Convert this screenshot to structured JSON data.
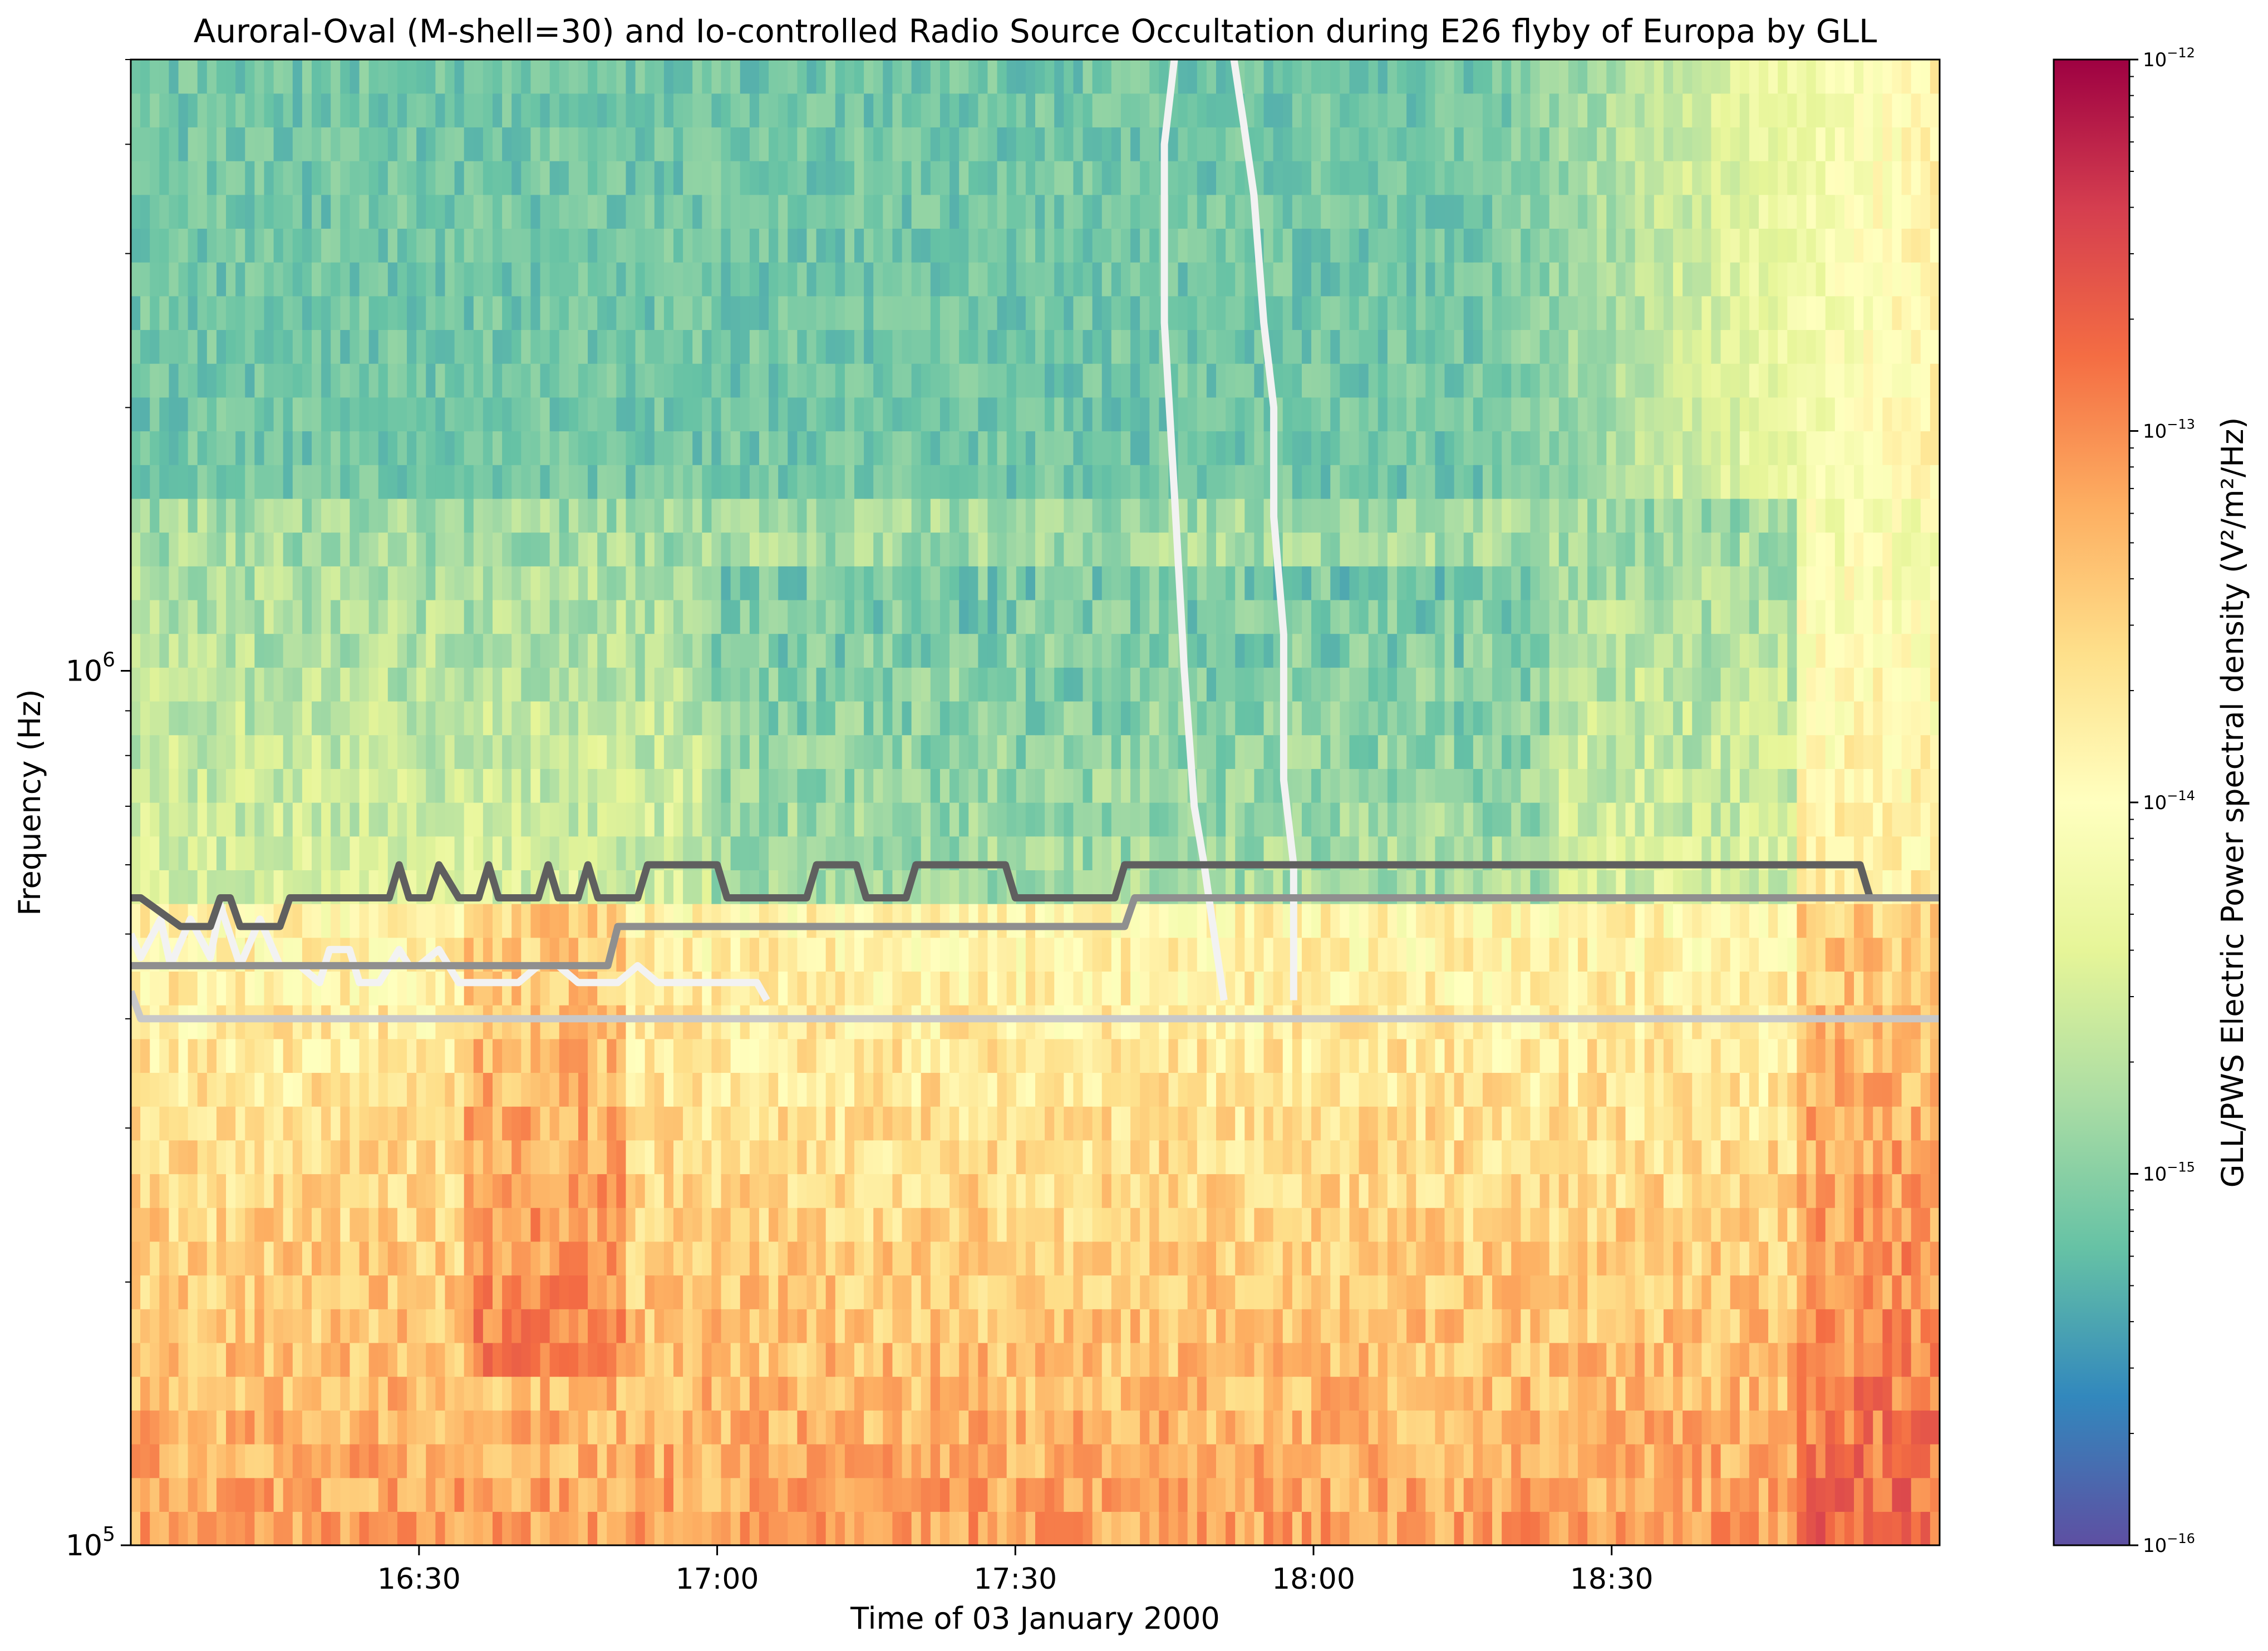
{
  "chart_data": {
    "type": "heatmap",
    "title": "Auroral-Oval (M-shell=30) and Io-controlled Radio Source Occultation during E26 flyby of Europa by GLL",
    "xlabel": "Time of 03 January 2000",
    "ylabel": "Frequency (Hz)",
    "colorbar_label": "GLL/PWS Electric Power spectral density (V²/m²/Hz)",
    "colormap": "Spectral_r",
    "colormap_stops": [
      "#5e4fa2",
      "#3288bd",
      "#66c2a5",
      "#abdda4",
      "#e6f598",
      "#ffffbf",
      "#fee08b",
      "#fdae61",
      "#f46d43",
      "#d53e4f",
      "#9e0142"
    ],
    "x_range": [
      "16:01",
      "19:03"
    ],
    "x_ticks": [
      "16:30",
      "17:00",
      "17:30",
      "18:00",
      "18:30"
    ],
    "y_scale": "log",
    "y_range": [
      100000,
      5000000
    ],
    "y_ticks": [
      {
        "value": 100000,
        "base": "10",
        "exp": "5"
      },
      {
        "value": 1000000,
        "base": "10",
        "exp": "6"
      }
    ],
    "color_scale": "log",
    "color_range": [
      1e-16,
      1e-12
    ],
    "color_ticks": [
      {
        "value": 1e-16,
        "base": "10",
        "exp": "−16"
      },
      {
        "value": 1e-15,
        "base": "10",
        "exp": "−15"
      },
      {
        "value": 1e-14,
        "base": "10",
        "exp": "−14"
      },
      {
        "value": 1e-13,
        "base": "10",
        "exp": "−13"
      },
      {
        "value": 1e-12,
        "base": "10",
        "exp": "−12"
      }
    ],
    "overlay_lines": [
      {
        "color": "#f2f2f2",
        "points": [
          [
            "17:46",
            5000000
          ],
          [
            "17:45",
            4000000
          ],
          [
            "17:45",
            2500000
          ],
          [
            "17:46",
            1600000
          ],
          [
            "17:47",
            1000000
          ],
          [
            "17:48",
            700000
          ],
          [
            "17:49",
            600000
          ],
          [
            "17:50",
            500000
          ],
          [
            "17:51",
            420000
          ]
        ]
      },
      {
        "color": "#f2f2f2",
        "points": [
          [
            "17:52",
            5000000
          ],
          [
            "17:53",
            4200000
          ],
          [
            "17:54",
            3500000
          ],
          [
            "17:55",
            2500000
          ],
          [
            "17:56",
            2000000
          ],
          [
            "17:56",
            1500000
          ],
          [
            "17:57",
            1100000
          ],
          [
            "17:57",
            750000
          ],
          [
            "17:58",
            600000
          ],
          [
            "17:58",
            420000
          ]
        ]
      },
      {
        "color": "#f2f2f2",
        "points": [
          [
            "16:01",
            500000
          ],
          [
            "16:02",
            470000
          ],
          [
            "16:04",
            520000
          ],
          [
            "16:05",
            460000
          ],
          [
            "16:07",
            520000
          ],
          [
            "16:09",
            470000
          ],
          [
            "16:10",
            540000
          ],
          [
            "16:12",
            460000
          ],
          [
            "16:14",
            520000
          ],
          [
            "16:16",
            460000
          ],
          [
            "16:18",
            460000
          ],
          [
            "16:20",
            440000
          ],
          [
            "16:21",
            480000
          ],
          [
            "16:23",
            480000
          ],
          [
            "16:24",
            440000
          ],
          [
            "16:26",
            440000
          ],
          [
            "16:28",
            480000
          ],
          [
            "16:29",
            460000
          ],
          [
            "16:30",
            460000
          ],
          [
            "16:32",
            480000
          ],
          [
            "16:34",
            440000
          ],
          [
            "16:36",
            440000
          ],
          [
            "16:38",
            440000
          ],
          [
            "16:40",
            440000
          ],
          [
            "16:42",
            460000
          ],
          [
            "16:44",
            460000
          ],
          [
            "16:46",
            440000
          ],
          [
            "16:48",
            440000
          ],
          [
            "16:50",
            440000
          ],
          [
            "16:52",
            460000
          ],
          [
            "16:54",
            440000
          ],
          [
            "16:57",
            440000
          ],
          [
            "17:00",
            440000
          ],
          [
            "17:04",
            440000
          ],
          [
            "17:05",
            420000
          ]
        ]
      },
      {
        "color": "#5f5f5f",
        "points": [
          [
            "16:01",
            550000
          ],
          [
            "16:02",
            550000
          ],
          [
            "16:06",
            510000
          ],
          [
            "16:09",
            510000
          ],
          [
            "16:10",
            550000
          ],
          [
            "16:11",
            550000
          ],
          [
            "16:12",
            510000
          ],
          [
            "16:16",
            510000
          ],
          [
            "16:17",
            550000
          ],
          [
            "16:27",
            550000
          ],
          [
            "16:28",
            600000
          ],
          [
            "16:29",
            550000
          ],
          [
            "16:31",
            550000
          ],
          [
            "16:32",
            600000
          ],
          [
            "16:34",
            550000
          ],
          [
            "16:36",
            550000
          ],
          [
            "16:37",
            600000
          ],
          [
            "16:38",
            550000
          ],
          [
            "16:42",
            550000
          ],
          [
            "16:43",
            600000
          ],
          [
            "16:44",
            550000
          ],
          [
            "16:46",
            550000
          ],
          [
            "16:47",
            600000
          ],
          [
            "16:48",
            550000
          ],
          [
            "16:52",
            550000
          ],
          [
            "16:53",
            600000
          ],
          [
            "17:00",
            600000
          ],
          [
            "17:01",
            550000
          ],
          [
            "17:09",
            550000
          ],
          [
            "17:10",
            600000
          ],
          [
            "17:14",
            600000
          ],
          [
            "17:15",
            550000
          ],
          [
            "17:19",
            550000
          ],
          [
            "17:20",
            600000
          ],
          [
            "17:29",
            600000
          ],
          [
            "17:30",
            550000
          ],
          [
            "17:40",
            550000
          ],
          [
            "17:41",
            600000
          ],
          [
            "18:55",
            600000
          ],
          [
            "18:56",
            550000
          ],
          [
            "19:03",
            550000
          ]
        ]
      },
      {
        "color": "#8f8f8f",
        "points": [
          [
            "16:01",
            460000
          ],
          [
            "16:49",
            460000
          ],
          [
            "16:50",
            510000
          ],
          [
            "17:41",
            510000
          ],
          [
            "17:42",
            550000
          ],
          [
            "19:03",
            550000
          ]
        ]
      },
      {
        "color": "#c8c8c8",
        "points": [
          [
            "16:01",
            430000
          ],
          [
            "16:02",
            400000
          ],
          [
            "19:03",
            400000
          ]
        ]
      }
    ]
  }
}
